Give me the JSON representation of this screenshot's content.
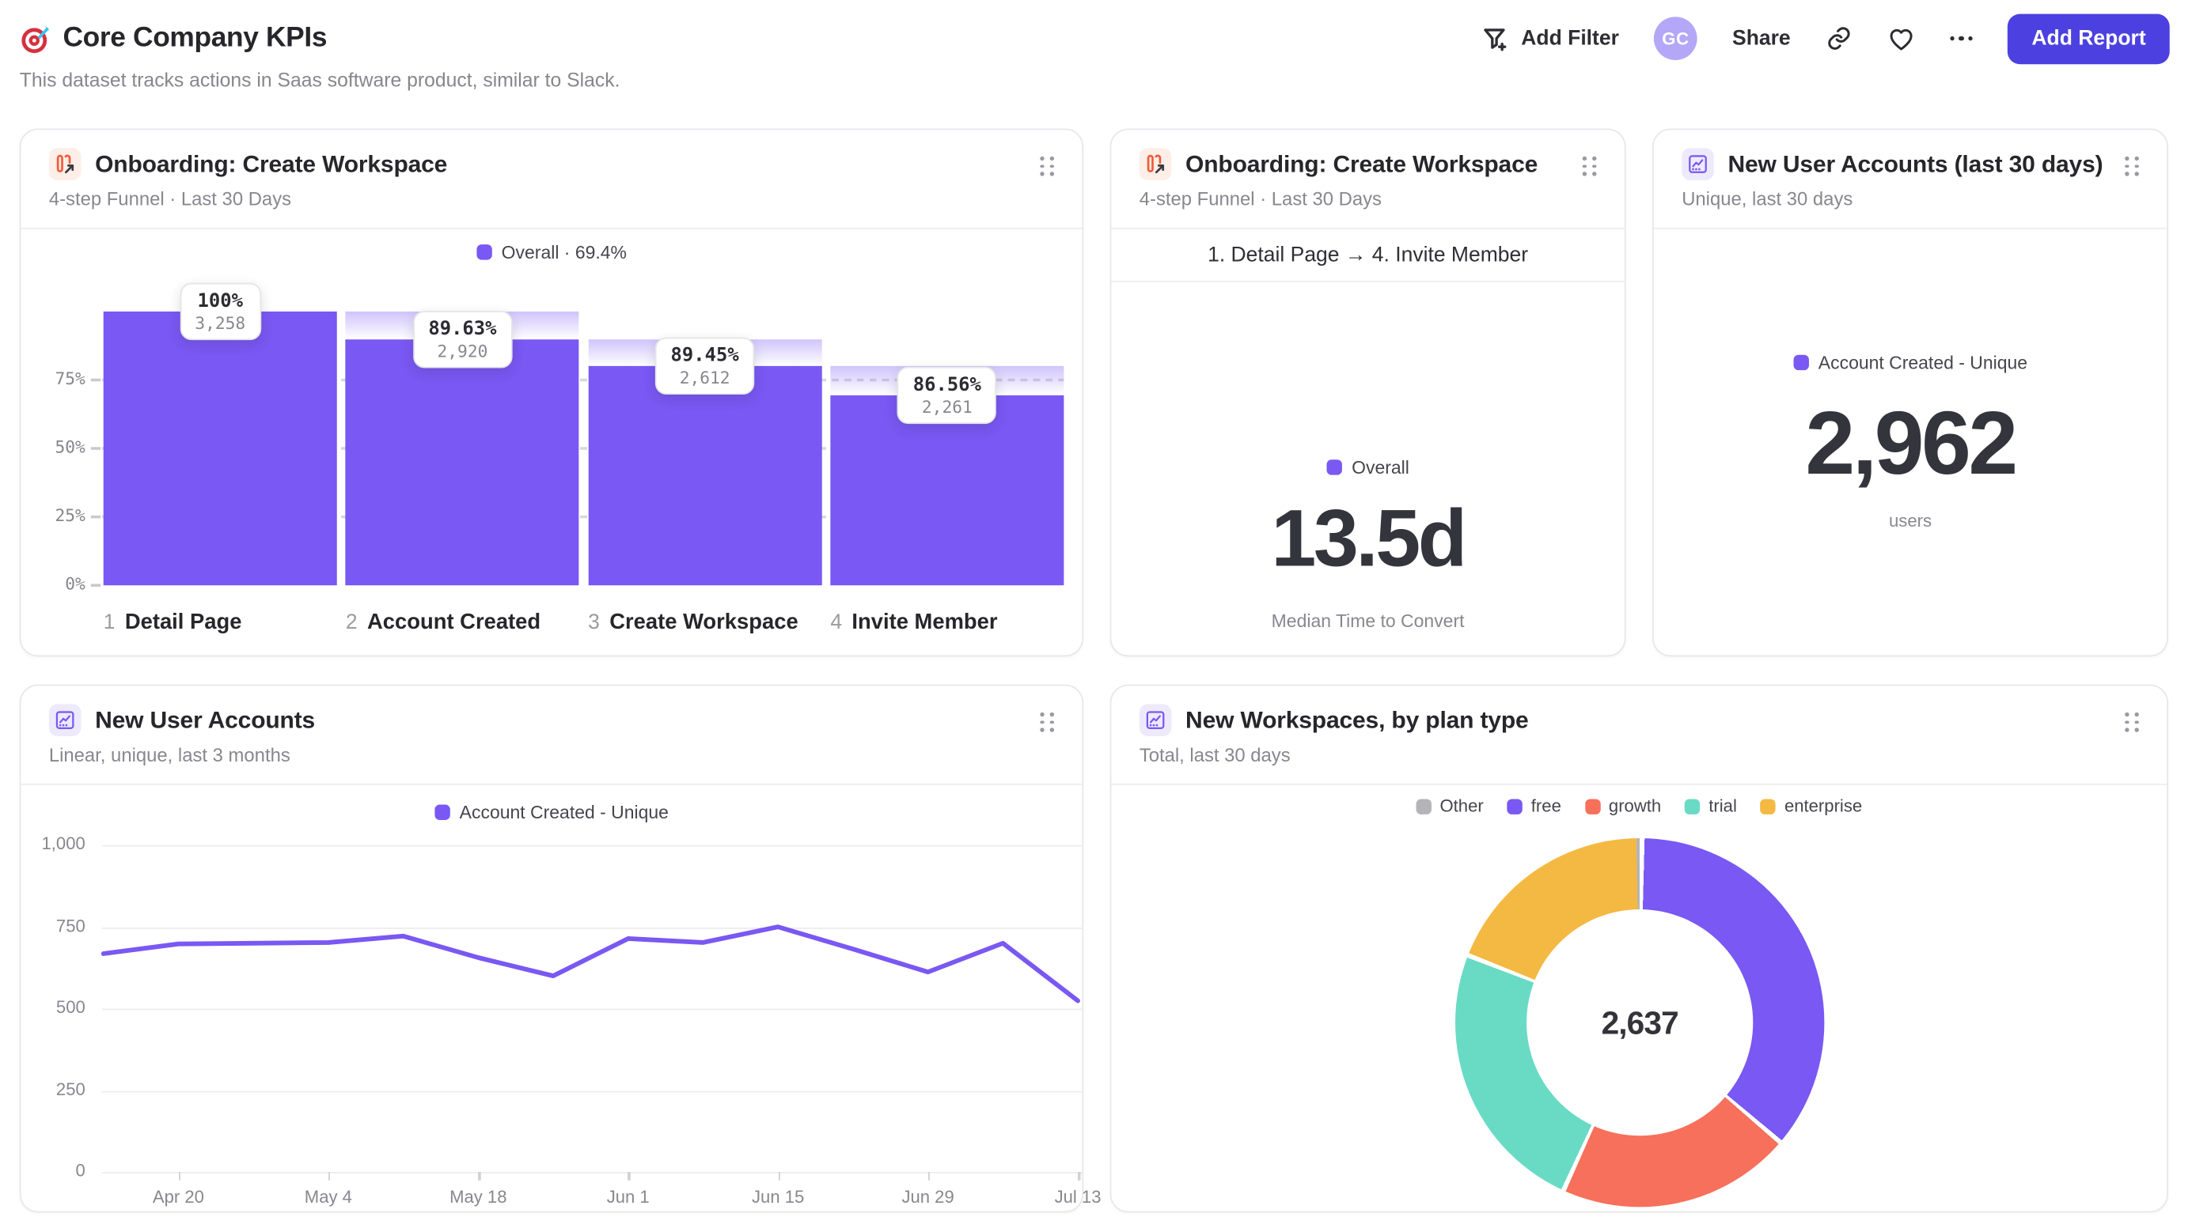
{
  "header": {
    "title": "Core Company KPIs",
    "subtitle": "This dataset tracks actions in Saas software product, similar to Slack.",
    "actions": {
      "add_filter": "Add Filter",
      "avatar_initials": "GC",
      "share": "Share",
      "add_report": "Add Report",
      "icons": [
        "filter-plus-icon",
        "link-icon",
        "heart-icon",
        "more-icon"
      ]
    },
    "logo_icon": "target-icon"
  },
  "colors": {
    "purple": "#7958f3",
    "indigo_button": "#4c41e0",
    "avatar_bg": "#b5a7f8",
    "coral": "#f7705b",
    "teal": "#69dbc5",
    "amber": "#f4b942",
    "gray_other": "#b4b4b8",
    "funnel_icon_orange": "#f15b3b",
    "ghost_bar": "#886cf5"
  },
  "cards": {
    "funnel": {
      "title": "Onboarding: Create Workspace",
      "subtitle": "4-step Funnel · Last 30 Days",
      "legend": "Overall · 69.4%"
    },
    "convert": {
      "title": "Onboarding: Create Workspace",
      "subtitle": "4-step Funnel · Last 30 Days",
      "range": "1. Detail Page → 4. Invite Member",
      "legend": "Overall",
      "value": "13.5d",
      "caption": "Median Time to Convert"
    },
    "new_accounts": {
      "title": "New User Accounts (last 30 days)",
      "subtitle": "Unique, last 30 days",
      "legend": "Account Created - Unique",
      "value": "2,962",
      "caption": "users"
    },
    "accounts_trend": {
      "title": "New User Accounts",
      "subtitle": "Linear, unique, last 3 months",
      "legend": "Account Created - Unique"
    },
    "workspaces": {
      "title": "New Workspaces, by plan type",
      "subtitle": "Total, last 30 days",
      "center_value": "2,637"
    }
  },
  "chart_data": [
    {
      "type": "bar",
      "variant": "funnel",
      "title": "Onboarding: Create Workspace",
      "legend": [
        "Overall · 69.4%"
      ],
      "ylim": [
        0,
        100
      ],
      "yticks": [
        "0%",
        "25%",
        "50%",
        "75%"
      ],
      "ytick_values": [
        0,
        25,
        50,
        75
      ],
      "grid": "dashed",
      "steps": [
        {
          "n": "1",
          "label": "Detail Page",
          "conversion": "100%",
          "count": "3,258",
          "count_num": 3258,
          "pct_of_first": 100
        },
        {
          "n": "2",
          "label": "Account Created",
          "conversion": "89.63%",
          "count": "2,920",
          "count_num": 2920,
          "pct_of_first": 89.63
        },
        {
          "n": "3",
          "label": "Create Workspace",
          "conversion": "89.45%",
          "count": "2,612",
          "count_num": 2612,
          "pct_of_first": 80.17
        },
        {
          "n": "4",
          "label": "Invite Member",
          "conversion": "86.56%",
          "count": "2,261",
          "count_num": 2261,
          "pct_of_first": 69.4
        }
      ]
    },
    {
      "type": "metric",
      "title": "Onboarding: Create Workspace — time to convert",
      "funnel_range": "1. Detail Page → 4. Invite Member",
      "series": "Overall",
      "value": "13.5d",
      "label": "Median Time to Convert"
    },
    {
      "type": "metric",
      "title": "New User Accounts (last 30 days)",
      "series": "Account Created - Unique",
      "value": "2,962",
      "value_num": 2962,
      "unit": "users"
    },
    {
      "type": "line",
      "title": "New User Accounts",
      "x": [
        "Apr 13",
        "Apr 20",
        "Apr 27",
        "May 4",
        "May 11",
        "May 18",
        "May 25",
        "Jun 1",
        "Jun 8",
        "Jun 15",
        "Jun 22",
        "Jun 29",
        "Jul 6",
        "Jul 13"
      ],
      "xticks": [
        "Apr 20",
        "May 4",
        "May 18",
        "Jun 1",
        "Jun 15",
        "Jun 29",
        "Jul 13"
      ],
      "yticks": [
        "0",
        "250",
        "500",
        "750",
        "1,000"
      ],
      "ytick_values": [
        0,
        250,
        500,
        750,
        1000
      ],
      "ylim": [
        0,
        1000
      ],
      "grid": true,
      "legend_position": "top",
      "series": [
        {
          "name": "Account Created - Unique",
          "values": [
            668,
            698,
            700,
            702,
            722,
            656,
            600,
            714,
            702,
            750,
            682,
            612,
            700,
            524
          ]
        }
      ]
    },
    {
      "type": "pie",
      "variant": "donut",
      "title": "New Workspaces, by plan type",
      "total": 2637,
      "center_label": "2,637",
      "legend_order": [
        "Other",
        "free",
        "growth",
        "trial",
        "enterprise"
      ],
      "slices": [
        {
          "label": "free",
          "value": 950,
          "color": "#7958f3"
        },
        {
          "label": "growth",
          "value": 542,
          "color": "#f7705b"
        },
        {
          "label": "trial",
          "value": 637,
          "color": "#69dbc5"
        },
        {
          "label": "enterprise",
          "value": 500,
          "color": "#f4b942"
        },
        {
          "label": "Other",
          "value": 8,
          "color": "#b4b4b8"
        }
      ]
    }
  ]
}
